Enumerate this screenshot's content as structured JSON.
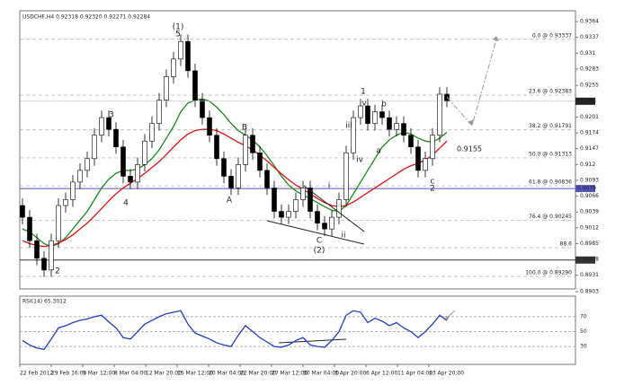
{
  "chart_data": {
    "type": "candlestick",
    "title": "USDCHF,H4 0.92318 0.92320 0.92271 0.92284",
    "ylim": [
      0.8903,
      0.9364
    ],
    "yticks": [
      0.9364,
      0.9337,
      0.931,
      0.9283,
      0.9255,
      0.9201,
      0.9174,
      0.9147,
      0.912,
      0.9093,
      0.9066,
      0.9039,
      0.9012,
      0.8985,
      0.8958,
      0.8931,
      0.8903
    ],
    "x_labels": [
      "22 Feb 2012",
      "29 Feb 16:00",
      "5 Mar 12:00",
      "8 Mar 04:00",
      "12 Mar 20:00",
      "15 Mar 12:00",
      "20 Mar 04:00",
      "22 Mar 20:00",
      "27 Mar 12:00",
      "30 Mar 04:00",
      "3 Apr 20:00",
      "6 Apr 12:00",
      "11 Apr 04:00",
      "13 Apr 20:00"
    ],
    "candles": [
      [
        0.905,
        0.9062,
        0.9018,
        0.903
      ],
      [
        0.903,
        0.9042,
        0.8978,
        0.899
      ],
      [
        0.899,
        0.9002,
        0.8948,
        0.896
      ],
      [
        0.896,
        0.8972,
        0.8928,
        0.894
      ],
      [
        0.894,
        0.9002,
        0.8928,
        0.899
      ],
      [
        0.899,
        0.9062,
        0.8978,
        0.905
      ],
      [
        0.905,
        0.9072,
        0.9038,
        0.906
      ],
      [
        0.906,
        0.9102,
        0.9048,
        0.909
      ],
      [
        0.909,
        0.9122,
        0.9078,
        0.911
      ],
      [
        0.911,
        0.9142,
        0.9098,
        0.913
      ],
      [
        0.913,
        0.9182,
        0.9118,
        0.917
      ],
      [
        0.917,
        0.9212,
        0.9158,
        0.92
      ],
      [
        0.92,
        0.9212,
        0.9168,
        0.918
      ],
      [
        0.918,
        0.9192,
        0.9138,
        0.915
      ],
      [
        0.915,
        0.9162,
        0.9088,
        0.91
      ],
      [
        0.91,
        0.9112,
        0.9078,
        0.909
      ],
      [
        0.909,
        0.9132,
        0.9078,
        0.912
      ],
      [
        0.912,
        0.9172,
        0.9108,
        0.916
      ],
      [
        0.916,
        0.9202,
        0.9148,
        0.919
      ],
      [
        0.919,
        0.9242,
        0.9178,
        0.923
      ],
      [
        0.923,
        0.9282,
        0.9218,
        0.927
      ],
      [
        0.927,
        0.9312,
        0.9258,
        0.93
      ],
      [
        0.93,
        0.9342,
        0.9288,
        0.933
      ],
      [
        0.933,
        0.9342,
        0.9268,
        0.928
      ],
      [
        0.928,
        0.9292,
        0.9218,
        0.923
      ],
      [
        0.923,
        0.9242,
        0.9188,
        0.92
      ],
      [
        0.92,
        0.9212,
        0.9158,
        0.917
      ],
      [
        0.917,
        0.9182,
        0.9118,
        0.913
      ],
      [
        0.913,
        0.9142,
        0.9088,
        0.91
      ],
      [
        0.91,
        0.9112,
        0.9068,
        0.908
      ],
      [
        0.908,
        0.9132,
        0.9068,
        0.912
      ],
      [
        0.912,
        0.9182,
        0.9108,
        0.917
      ],
      [
        0.917,
        0.9182,
        0.9128,
        0.914
      ],
      [
        0.914,
        0.9152,
        0.9098,
        0.911
      ],
      [
        0.911,
        0.9122,
        0.9068,
        0.908
      ],
      [
        0.908,
        0.9092,
        0.9028,
        0.904
      ],
      [
        0.904,
        0.9052,
        0.9018,
        0.903
      ],
      [
        0.903,
        0.9052,
        0.9018,
        0.904
      ],
      [
        0.904,
        0.9072,
        0.9028,
        0.906
      ],
      [
        0.906,
        0.9092,
        0.9048,
        0.908
      ],
      [
        0.908,
        0.9092,
        0.9028,
        0.904
      ],
      [
        0.904,
        0.9052,
        0.9008,
        0.902
      ],
      [
        0.902,
        0.9032,
        0.8998,
        0.901
      ],
      [
        0.901,
        0.9042,
        0.8998,
        0.903
      ],
      [
        0.903,
        0.9072,
        0.9018,
        0.906
      ],
      [
        0.906,
        0.9152,
        0.9048,
        0.914
      ],
      [
        0.914,
        0.9212,
        0.9128,
        0.92
      ],
      [
        0.92,
        0.9232,
        0.9188,
        0.922
      ],
      [
        0.922,
        0.9232,
        0.9178,
        0.919
      ],
      [
        0.919,
        0.9222,
        0.9178,
        0.921
      ],
      [
        0.921,
        0.9222,
        0.9188,
        0.92
      ],
      [
        0.92,
        0.9212,
        0.9168,
        0.918
      ],
      [
        0.918,
        0.9202,
        0.9168,
        0.919
      ],
      [
        0.919,
        0.9202,
        0.9158,
        0.917
      ],
      [
        0.917,
        0.9182,
        0.9138,
        0.915
      ],
      [
        0.915,
        0.9162,
        0.9098,
        0.911
      ],
      [
        0.911,
        0.9142,
        0.9098,
        0.913
      ],
      [
        0.913,
        0.9182,
        0.9118,
        0.917
      ],
      [
        0.917,
        0.9252,
        0.9158,
        0.924
      ],
      [
        0.924,
        0.9252,
        0.9218,
        0.9228
      ]
    ],
    "series": [
      {
        "color": "#1a8a1a",
        "values": [
          0.901,
          0.9005,
          0.8995,
          0.8985,
          0.898,
          0.8985,
          0.8995,
          0.901,
          0.9025,
          0.904,
          0.906,
          0.908,
          0.9095,
          0.9105,
          0.911,
          0.911,
          0.9112,
          0.912,
          0.913,
          0.9145,
          0.9165,
          0.9185,
          0.921,
          0.9225,
          0.923,
          0.9232,
          0.9228,
          0.9218,
          0.9205,
          0.919,
          0.9178,
          0.917,
          0.9162,
          0.915,
          0.9135,
          0.9118,
          0.91,
          0.9085,
          0.9075,
          0.9068,
          0.9062,
          0.9055,
          0.9048,
          0.9042,
          0.904,
          0.905,
          0.907,
          0.909,
          0.911,
          0.913,
          0.915,
          0.9162,
          0.917,
          0.9175,
          0.9172,
          0.9165,
          0.916,
          0.9158,
          0.9165,
          0.9175
        ]
      },
      {
        "color": "#dd1111",
        "values": [
          0.899,
          0.8985,
          0.8982,
          0.898,
          0.8982,
          0.8986,
          0.8992,
          0.9,
          0.901,
          0.902,
          0.9032,
          0.9045,
          0.9058,
          0.907,
          0.908,
          0.9088,
          0.9096,
          0.9105,
          0.9115,
          0.9125,
          0.9137,
          0.915,
          0.9162,
          0.9172,
          0.9178,
          0.918,
          0.918,
          0.9178,
          0.9172,
          0.9165,
          0.9158,
          0.9152,
          0.9145,
          0.9136,
          0.9126,
          0.9115,
          0.9104,
          0.9094,
          0.9085,
          0.9078,
          0.907,
          0.9062,
          0.9055,
          0.905,
          0.9048,
          0.905,
          0.9056,
          0.9064,
          0.9072,
          0.908,
          0.9088,
          0.9096,
          0.9104,
          0.9112,
          0.9118,
          0.9122,
          0.9128,
          0.9136,
          0.9148,
          0.916
        ]
      }
    ],
    "last_price": 0.9228,
    "hlines": [
      {
        "value": 0.9079,
        "color": "#5555bb"
      },
      {
        "value": 0.8957,
        "color": "#333333"
      }
    ],
    "fib_levels": [
      {
        "value": 0.93337,
        "label": "0.0 @ 0.93337"
      },
      {
        "value": 0.92383,
        "label": "23.6 @ 0.92383"
      },
      {
        "value": 0.91791,
        "label": "38.2 @ 0.91791"
      },
      {
        "value": 0.91313,
        "label": "50.0 @ 0.91313"
      },
      {
        "value": 0.90836,
        "label": "61.8 @ 0.90836"
      },
      {
        "value": 0.90245,
        "label": "76.4 @ 0.90245"
      },
      {
        "value": 0.8978,
        "label": "88.6"
      },
      {
        "value": 0.8929,
        "label": "100.0 @ 0.89290"
      }
    ],
    "annotations": [
      {
        "text": "(1)",
        "color": "#cc0000"
      },
      {
        "text": "5",
        "color": "#222222"
      },
      {
        "text": "3",
        "color": "#222222"
      },
      {
        "text": "4",
        "color": "#222222"
      },
      {
        "text": "2",
        "color": "#222222"
      },
      {
        "text": "A",
        "color": "#222222"
      },
      {
        "text": "B",
        "color": "#222222"
      },
      {
        "text": "C",
        "color": "#222222"
      },
      {
        "text": "(2)",
        "color": "#cc0000"
      },
      {
        "text": "i",
        "color": "#1a8a1a"
      },
      {
        "text": "ii",
        "color": "#1a8a1a"
      },
      {
        "text": "iii",
        "color": "#1a8a1a"
      },
      {
        "text": "iv",
        "color": "#1a8a1a"
      },
      {
        "text": "v",
        "color": "#1a8a1a"
      },
      {
        "text": "a",
        "color": "#1a8a1a"
      },
      {
        "text": "b",
        "color": "#1a8a1a"
      },
      {
        "text": "c",
        "color": "#1a8a1a"
      },
      {
        "text": "1",
        "color": "#222222"
      },
      {
        "text": "2",
        "color": "#222222"
      },
      {
        "text": "0.9155",
        "color": "#222222"
      }
    ],
    "rsi": {
      "title": "RSI(14) 65.3012",
      "color": "#2040c0",
      "ylim": [
        0,
        100
      ],
      "yticks": [
        70,
        50,
        30
      ],
      "values": [
        38,
        32,
        28,
        26,
        40,
        55,
        58,
        62,
        65,
        67,
        70,
        72,
        63,
        55,
        42,
        40,
        50,
        60,
        65,
        70,
        74,
        76,
        78,
        60,
        48,
        44,
        40,
        35,
        32,
        30,
        45,
        58,
        50,
        42,
        36,
        30,
        29,
        32,
        38,
        42,
        32,
        30,
        29,
        38,
        50,
        72,
        78,
        76,
        62,
        68,
        64,
        58,
        62,
        55,
        50,
        42,
        50,
        60,
        72,
        65
      ]
    }
  }
}
